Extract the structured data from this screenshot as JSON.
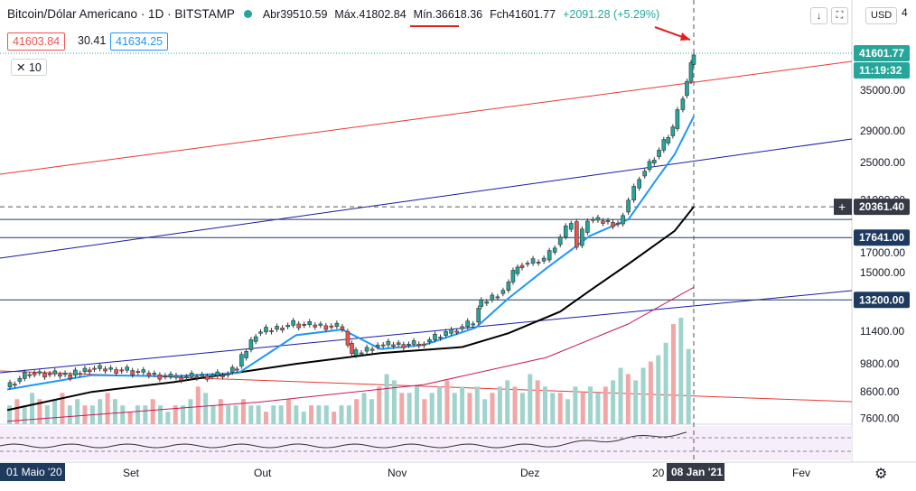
{
  "legend": {
    "symbol": "Bitcoin/Dólar Americano · 1D · BITSTAMP",
    "open_label": "Abr",
    "open": "39510.59",
    "high_label": "Máx.",
    "high": "41802.84",
    "low_label": "Mín.",
    "low": "36618.36",
    "close_label": "Fch",
    "close": "41601.77",
    "change": "+2091.28 (+5.29%)"
  },
  "bid_ask": {
    "bid": "41603.84",
    "spread": "30.41",
    "ask": "41634.25"
  },
  "indicator_label": "10",
  "currency_button": "USD",
  "toolbar": {
    "down_icon": "arrow-down-icon",
    "fullscreen_icon": "fullscreen-icon"
  },
  "price_axis": {
    "ticks": [
      "35000.00",
      "29000.00",
      "25000.00",
      "15000.00",
      "11400.00",
      "9800.00",
      "8600.00",
      "7600.00"
    ],
    "top_partial": "4",
    "hidden_partial": [
      "21000.00",
      "17000.00"
    ],
    "badges": [
      {
        "price": "41601.77",
        "color": "#26a69a",
        "text_color": "#ffffff"
      },
      {
        "price": "11:19:32",
        "color": "#26a69a",
        "text_color": "#ffffff"
      },
      {
        "price": "20361.40",
        "color": "#363a45",
        "text_color": "#ffffff"
      },
      {
        "price": "17641.00",
        "color": "#1e3a5f",
        "text_color": "#ffffff"
      },
      {
        "price": "13200.00",
        "color": "#1e3a5f",
        "text_color": "#ffffff"
      }
    ]
  },
  "time_axis": {
    "ticks": [
      "01 Maio '20",
      "Set",
      "Out",
      "Nov",
      "Dez",
      "20",
      "Fev"
    ],
    "cursor_label": "08 Jan '21"
  },
  "colors": {
    "up": "#26a69a",
    "down": "#ef5350",
    "ema_fast": "#2196f3",
    "ema_slow": "#000000",
    "ma_purple": "#c2185b",
    "hline": "#1e3a5f",
    "channel_red": "#e53935",
    "channel_blue": "#1a1aa0"
  },
  "chart_data": {
    "type": "candlestick",
    "title": "Bitcoin/Dólar Americano · 1D · BITSTAMP",
    "xlabel": "",
    "ylabel": "",
    "scale": "log",
    "ylim": [
      7400,
      47000
    ],
    "x_range": [
      "2020-05-01",
      "2021-02-28"
    ],
    "horizontal_levels": [
      17641.0,
      13200.0,
      19200.0
    ],
    "crosshair_price": 20361.4,
    "last_price": 41601.77,
    "series": [
      {
        "name": "",
        "kind": "close-path",
        "points": [
          [
            "2020-05-01",
            8800
          ],
          [
            "2020-05-10",
            9400
          ],
          [
            "2020-05-25",
            9300
          ],
          [
            "2020-06-01",
            9600
          ],
          [
            "2020-06-15",
            9500
          ],
          [
            "2020-07-01",
            9200
          ],
          [
            "2020-07-20",
            9300
          ],
          [
            "2020-07-25",
            9700
          ],
          [
            "2020-08-01",
            11300
          ],
          [
            "2020-08-15",
            11800
          ],
          [
            "2020-08-31",
            11650
          ],
          [
            "2020-09-02",
            11400
          ],
          [
            "2020-09-05",
            10200
          ],
          [
            "2020-09-15",
            10700
          ],
          [
            "2020-09-30",
            10750
          ],
          [
            "2020-10-10",
            11300
          ],
          [
            "2020-10-20",
            11900
          ],
          [
            "2020-10-21",
            12800
          ],
          [
            "2020-10-31",
            13800
          ],
          [
            "2020-11-05",
            15500
          ],
          [
            "2020-11-15",
            15900
          ],
          [
            "2020-11-25",
            19000
          ],
          [
            "2020-11-27",
            17000
          ],
          [
            "2020-12-01",
            19200
          ],
          [
            "2020-12-12",
            18800
          ],
          [
            "2020-12-16",
            21000
          ],
          [
            "2020-12-20",
            23500
          ],
          [
            "2020-12-27",
            26500
          ],
          [
            "2021-01-01",
            29300
          ],
          [
            "2021-01-03",
            32000
          ],
          [
            "2021-01-06",
            36500
          ],
          [
            "2021-01-07",
            39500
          ],
          [
            "2021-01-08",
            41601.77
          ]
        ]
      },
      {
        "name": "",
        "kind": "ema-fast",
        "points": [
          [
            "2020-05-01",
            8700
          ],
          [
            "2020-06-01",
            9300
          ],
          [
            "2020-07-01",
            9250
          ],
          [
            "2020-07-25",
            9400
          ],
          [
            "2020-08-15",
            11200
          ],
          [
            "2020-09-01",
            11500
          ],
          [
            "2020-09-15",
            10500
          ],
          [
            "2020-10-01",
            10700
          ],
          [
            "2020-10-20",
            11600
          ],
          [
            "2020-11-01",
            13300
          ],
          [
            "2020-11-15",
            15300
          ],
          [
            "2020-12-01",
            17800
          ],
          [
            "2020-12-15",
            19200
          ],
          [
            "2020-12-25",
            23000
          ],
          [
            "2021-01-01",
            26000
          ],
          [
            "2021-01-08",
            31000
          ]
        ]
      },
      {
        "name": "",
        "kind": "ema-slow",
        "points": [
          [
            "2020-05-01",
            7900
          ],
          [
            "2020-06-01",
            8600
          ],
          [
            "2020-07-01",
            9000
          ],
          [
            "2020-08-15",
            9800
          ],
          [
            "2020-09-15",
            10300
          ],
          [
            "2020-10-15",
            10600
          ],
          [
            "2020-11-01",
            11300
          ],
          [
            "2020-11-20",
            12500
          ],
          [
            "2020-12-01",
            13800
          ],
          [
            "2020-12-15",
            15600
          ],
          [
            "2021-01-01",
            18200
          ],
          [
            "2021-01-08",
            20361.4
          ]
        ]
      },
      {
        "name": "",
        "kind": "ma-long",
        "points": [
          [
            "2020-05-01",
            7500
          ],
          [
            "2020-08-01",
            8200
          ],
          [
            "2020-10-01",
            8900
          ],
          [
            "2020-11-15",
            10100
          ],
          [
            "2020-12-15",
            11800
          ],
          [
            "2021-01-08",
            14000
          ]
        ]
      }
    ],
    "volume": [
      3,
      4,
      3,
      5,
      4,
      3,
      4,
      5,
      3,
      4,
      3,
      3,
      4,
      5,
      4,
      3,
      2,
      3,
      3,
      4,
      3,
      2,
      3,
      3,
      4,
      6,
      5,
      3,
      4,
      3,
      3,
      4,
      3,
      3,
      2,
      3,
      3,
      4,
      3,
      2,
      3,
      3,
      3,
      2,
      3,
      3,
      4,
      5,
      4,
      6,
      8,
      7,
      5,
      5,
      6,
      4,
      5,
      6,
      7,
      5,
      6,
      5,
      6,
      4,
      5,
      6,
      7,
      6,
      5,
      8,
      7,
      6,
      5,
      5,
      4,
      6,
      5,
      6,
      5,
      6,
      7,
      9,
      8,
      7,
      9,
      10,
      11,
      13,
      16,
      17,
      12
    ]
  }
}
